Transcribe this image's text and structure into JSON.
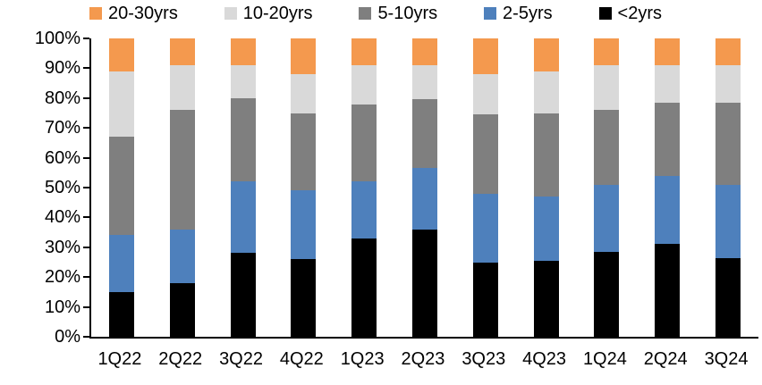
{
  "chart_data": {
    "type": "bar",
    "stacked": true,
    "percent": true,
    "title": "",
    "xlabel": "",
    "ylabel": "",
    "ylim": [
      0,
      100
    ],
    "grid": false,
    "legend_position": "top",
    "categories": [
      "1Q22",
      "2Q22",
      "3Q22",
      "4Q22",
      "1Q23",
      "2Q23",
      "3Q23",
      "4Q23",
      "1Q24",
      "2Q24",
      "3Q24"
    ],
    "series": [
      {
        "name": "<2yrs",
        "color": "#000000",
        "values": [
          15,
          18,
          28,
          26,
          33,
          36,
          25,
          25.5,
          28.5,
          31,
          26.5
        ]
      },
      {
        "name": "2-5yrs",
        "color": "#4E80BC",
        "values": [
          19,
          18,
          24,
          23,
          19,
          20.5,
          23,
          21.5,
          22.5,
          23,
          24.5
        ]
      },
      {
        "name": "5-10yrs",
        "color": "#7F7F7F",
        "values": [
          33,
          40,
          28,
          26,
          26,
          23,
          26.5,
          28,
          25,
          24.5,
          27.5
        ]
      },
      {
        "name": "10-20yrs",
        "color": "#D9D9D9",
        "values": [
          22,
          15,
          11,
          13,
          13,
          11.5,
          13.5,
          14,
          15,
          12.5,
          12.5
        ]
      },
      {
        "name": "20-30yrs",
        "color": "#F4994E",
        "values": [
          11,
          9,
          9,
          12,
          9,
          9,
          12,
          11,
          9,
          9,
          9
        ]
      }
    ],
    "legend_order": [
      "20-30yrs",
      "10-20yrs",
      "5-10yrs",
      "2-5yrs",
      "<2yrs"
    ],
    "y_ticks": [
      "100%",
      "90%",
      "80%",
      "70%",
      "60%",
      "50%",
      "40%",
      "30%",
      "20%",
      "10%",
      "0%"
    ]
  }
}
